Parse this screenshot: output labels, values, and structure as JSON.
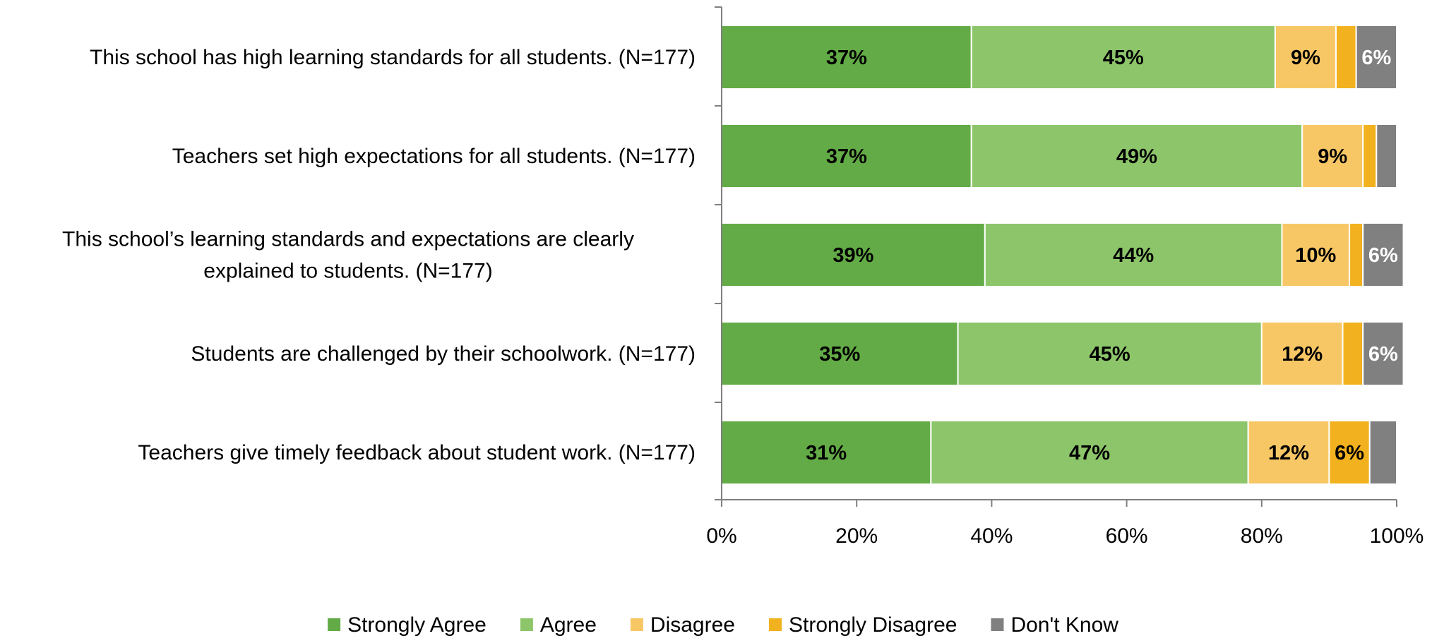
{
  "chart_data": {
    "type": "bar",
    "orientation": "horizontal",
    "stacked": true,
    "xlim": [
      0,
      100
    ],
    "ticks": [
      "0%",
      "20%",
      "40%",
      "60%",
      "80%",
      "100%"
    ],
    "tick_values": [
      0,
      20,
      40,
      60,
      80,
      100
    ],
    "grid": false,
    "legend_position": "bottom",
    "categories": [
      [
        "This school has high learning standards for all students. (N=177)"
      ],
      [
        "Teachers set high expectations for all students. (N=177)"
      ],
      [
        "This school’s learning standards and expectations are clearly",
        "explained to students. (N=177)"
      ],
      [
        "Students are challenged by their schoolwork. (N=177)"
      ],
      [
        "Teachers give timely feedback about student work. (N=177)"
      ]
    ],
    "series": [
      {
        "name": "Strongly Agree",
        "color": "#63AB46",
        "label_color": "#000000",
        "values": [
          37,
          37,
          39,
          35,
          31
        ],
        "labels": [
          "37%",
          "37%",
          "39%",
          "35%",
          "31%"
        ]
      },
      {
        "name": "Agree",
        "color": "#8DC56A",
        "label_color": "#000000",
        "values": [
          45,
          49,
          44,
          45,
          47
        ],
        "labels": [
          "45%",
          "49%",
          "44%",
          "45%",
          "47%"
        ]
      },
      {
        "name": "Disagree",
        "color": "#F8C765",
        "label_color": "#000000",
        "values": [
          9,
          9,
          10,
          12,
          12
        ],
        "labels": [
          "9%",
          "9%",
          "10%",
          "12%",
          "12%"
        ]
      },
      {
        "name": "Strongly Disagree",
        "color": "#F2B21F",
        "label_color": "#000000",
        "values": [
          3,
          2,
          2,
          3,
          6
        ],
        "labels": [
          "",
          "",
          "",
          "",
          "6%"
        ]
      },
      {
        "name": "Don't Know",
        "color": "#808080",
        "label_color": "#ffffff",
        "values": [
          6,
          3,
          6,
          6,
          4
        ],
        "labels": [
          "6%",
          "",
          "6%",
          "6%",
          ""
        ]
      }
    ]
  }
}
